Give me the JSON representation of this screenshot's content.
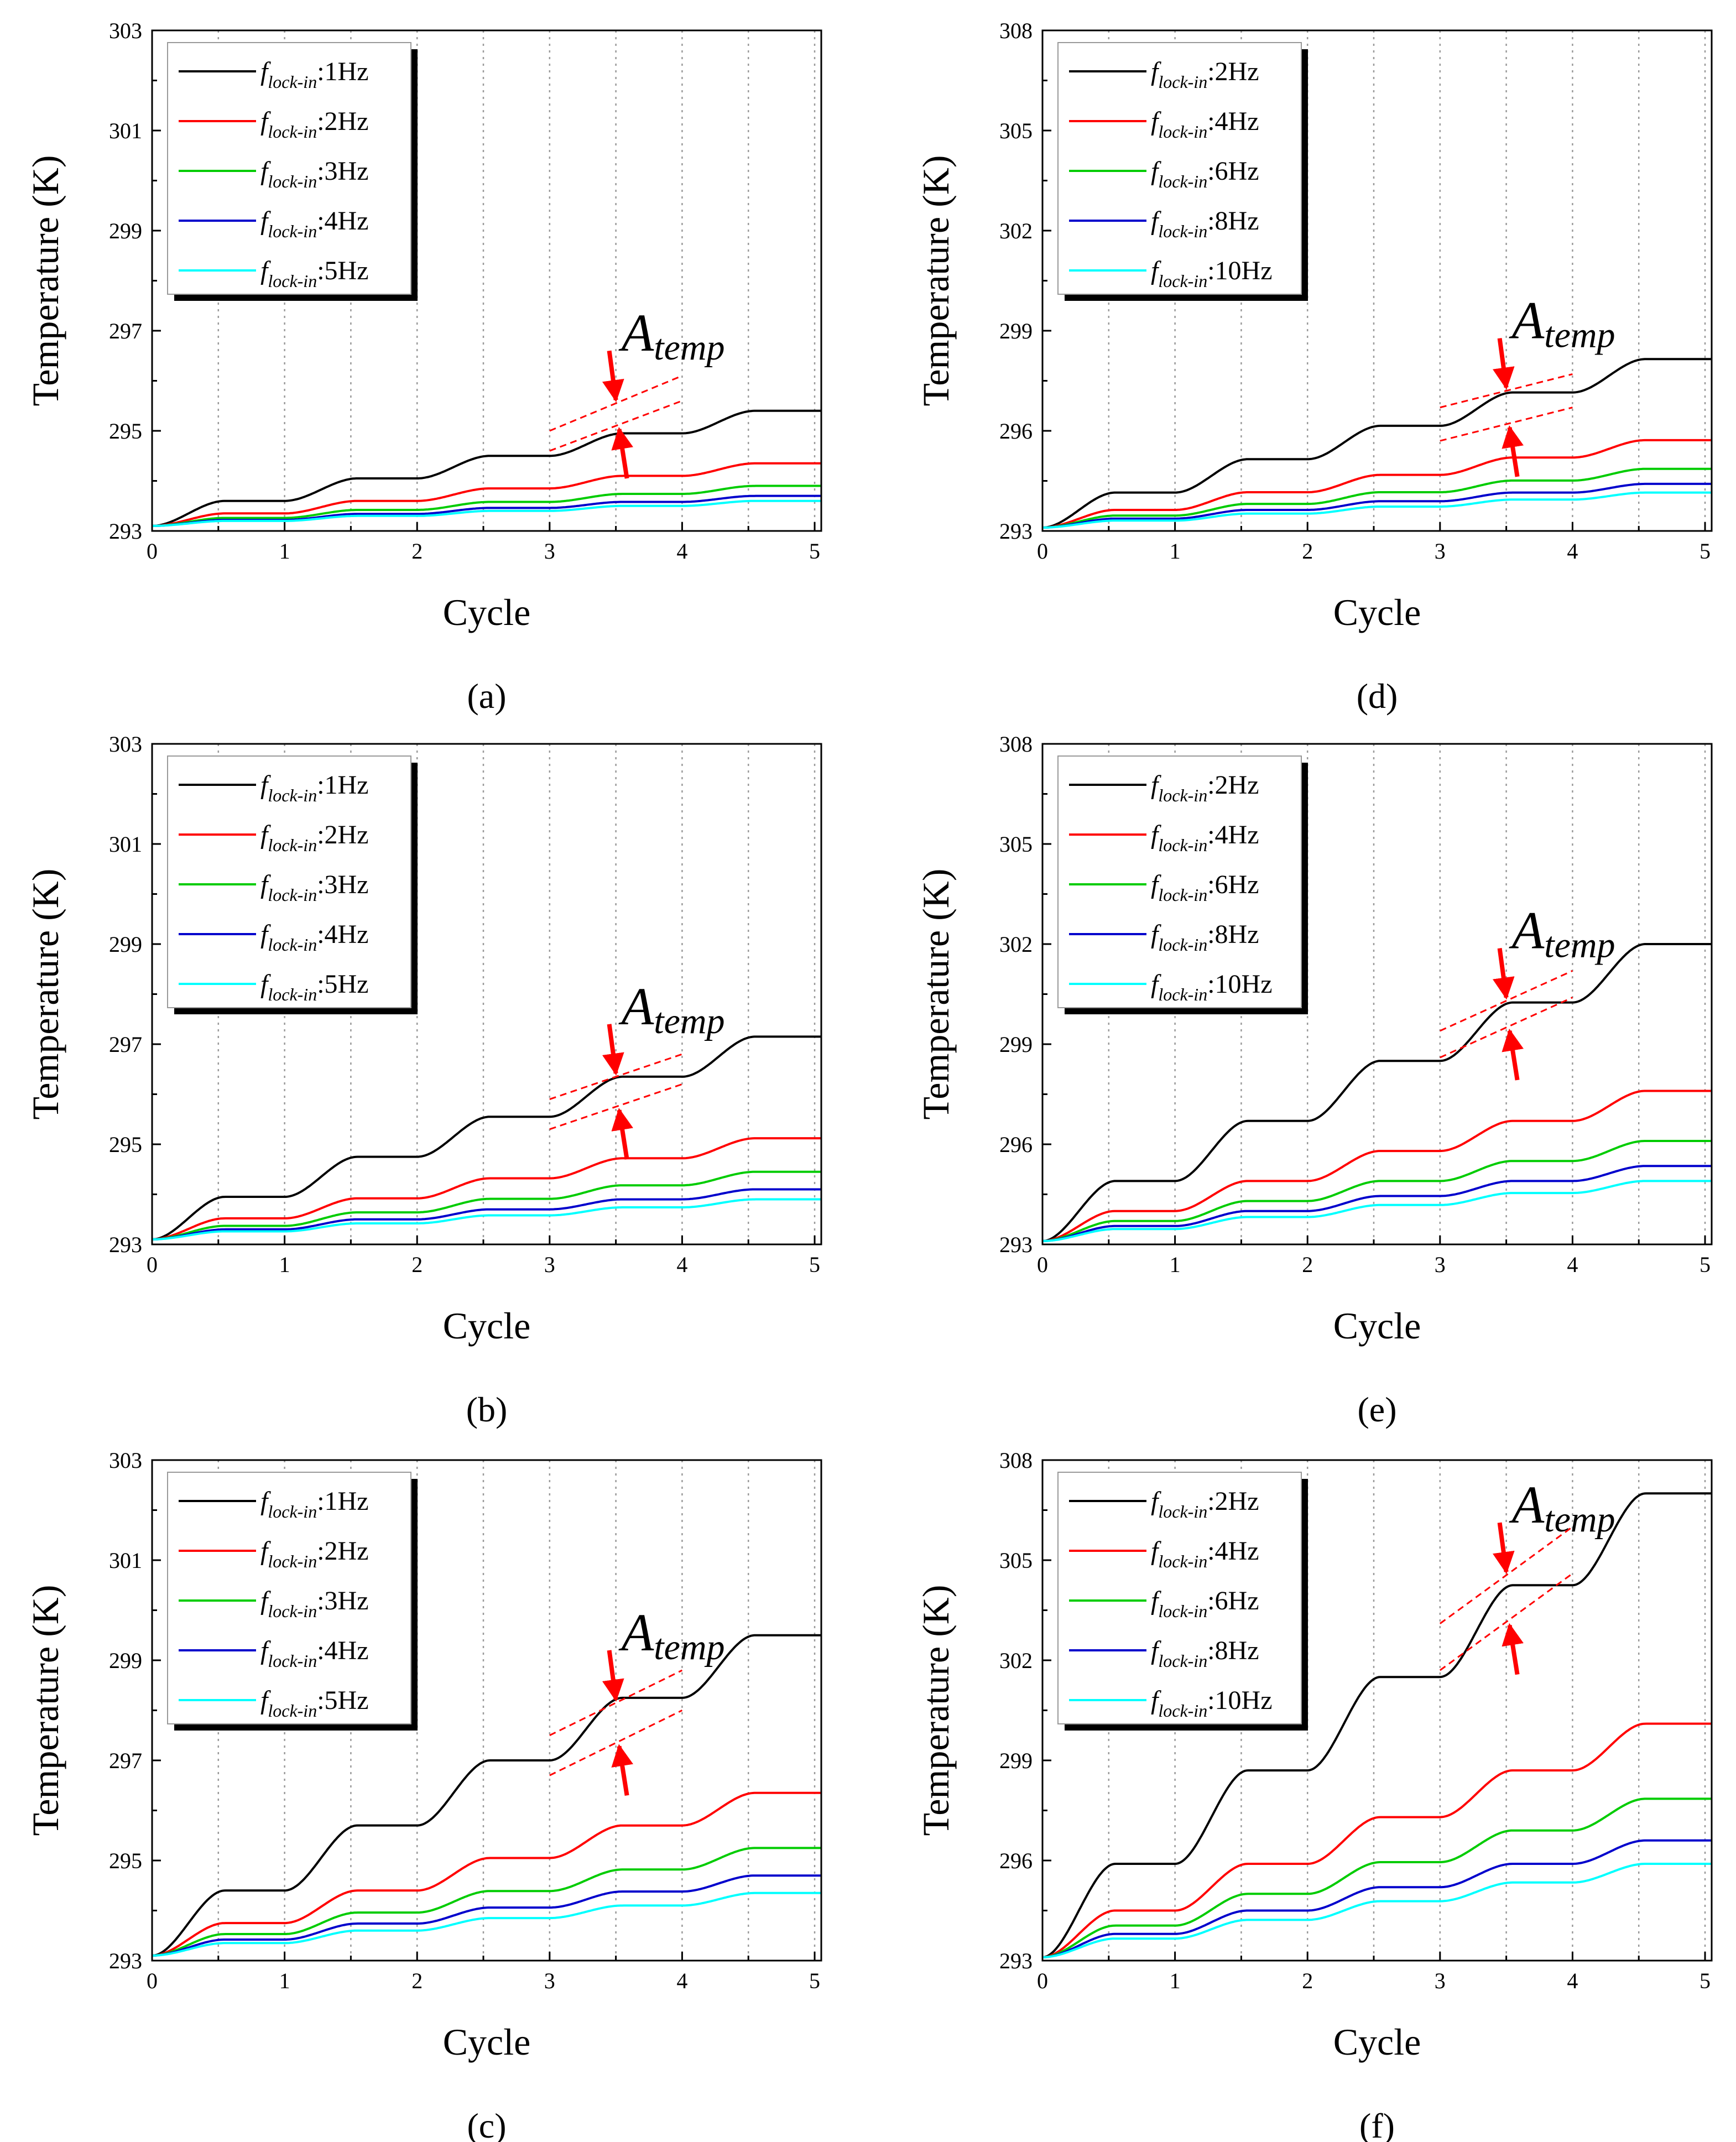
{
  "figure": {
    "axis_x_label": "Cycle",
    "axis_y_label": "Temperature (K)",
    "annotation_base": "A",
    "annotation_sub": "temp",
    "legend_prefix": "f",
    "legend_sub": "lock-in"
  },
  "chart_data": [
    {
      "id": "a",
      "type": "line",
      "caption": "(a)",
      "xlabel": "Cycle",
      "ylabel": "Temperature (K)",
      "xlim": [
        0,
        5.05
      ],
      "ylim": [
        293,
        303
      ],
      "xticks": [
        0,
        1,
        2,
        3,
        4,
        5
      ],
      "yticks": [
        293,
        295,
        297,
        299,
        301,
        303
      ],
      "grid_x": [
        0.5,
        1,
        1.5,
        2,
        2.5,
        3,
        3.5,
        4,
        4.5,
        5
      ],
      "series": [
        {
          "name": ":1Hz",
          "color": "#000000",
          "start": 293.1,
          "increments": [
            0.5,
            0.45,
            0.45,
            0.45,
            0.45
          ]
        },
        {
          "name": ":2Hz",
          "color": "#ff0000",
          "start": 293.1,
          "increments": [
            0.25,
            0.25,
            0.25,
            0.25,
            0.25
          ]
        },
        {
          "name": ":3Hz",
          "color": "#00cc00",
          "start": 293.1,
          "increments": [
            0.16,
            0.16,
            0.16,
            0.16,
            0.16
          ]
        },
        {
          "name": ":4Hz",
          "color": "#0000cc",
          "start": 293.1,
          "increments": [
            0.12,
            0.12,
            0.12,
            0.12,
            0.12
          ]
        },
        {
          "name": ":5Hz",
          "color": "#00ffff",
          "start": 293.1,
          "increments": [
            0.1,
            0.1,
            0.1,
            0.1,
            0.1
          ]
        }
      ],
      "annotation": {
        "label": "A_temp",
        "x_range": [
          3,
          4
        ],
        "upper": [
          295.0,
          296.1
        ],
        "lower": [
          294.6,
          295.6
        ],
        "arrow_x": 3.5
      }
    },
    {
      "id": "b",
      "type": "line",
      "caption": "(b)",
      "xlabel": "Cycle",
      "ylabel": "Temperature (K)",
      "xlim": [
        0,
        5.05
      ],
      "ylim": [
        293,
        303
      ],
      "xticks": [
        0,
        1,
        2,
        3,
        4,
        5
      ],
      "yticks": [
        293,
        295,
        297,
        299,
        301,
        303
      ],
      "grid_x": [
        0.5,
        1,
        1.5,
        2,
        2.5,
        3,
        3.5,
        4,
        4.5,
        5
      ],
      "series": [
        {
          "name": ":1Hz",
          "color": "#000000",
          "start": 293.1,
          "increments": [
            0.85,
            0.8,
            0.8,
            0.8,
            0.8
          ]
        },
        {
          "name": ":2Hz",
          "color": "#ff0000",
          "start": 293.1,
          "increments": [
            0.42,
            0.4,
            0.4,
            0.4,
            0.4
          ]
        },
        {
          "name": ":3Hz",
          "color": "#00cc00",
          "start": 293.1,
          "increments": [
            0.27,
            0.27,
            0.27,
            0.27,
            0.27
          ]
        },
        {
          "name": ":4Hz",
          "color": "#0000cc",
          "start": 293.1,
          "increments": [
            0.2,
            0.2,
            0.2,
            0.2,
            0.2
          ]
        },
        {
          "name": ":5Hz",
          "color": "#00ffff",
          "start": 293.1,
          "increments": [
            0.16,
            0.16,
            0.16,
            0.16,
            0.16
          ]
        }
      ],
      "annotation": {
        "label": "A_temp",
        "x_range": [
          3,
          4
        ],
        "upper": [
          295.9,
          296.8
        ],
        "lower": [
          295.3,
          296.2
        ],
        "arrow_x": 3.5
      }
    },
    {
      "id": "c",
      "type": "line",
      "caption": "(c)",
      "xlabel": "Cycle",
      "ylabel": "Temperature (K)",
      "xlim": [
        0,
        5.05
      ],
      "ylim": [
        293,
        303
      ],
      "xticks": [
        0,
        1,
        2,
        3,
        4,
        5
      ],
      "yticks": [
        293,
        295,
        297,
        299,
        301,
        303
      ],
      "grid_x": [
        0.5,
        1,
        1.5,
        2,
        2.5,
        3,
        3.5,
        4,
        4.5,
        5
      ],
      "series": [
        {
          "name": ":1Hz",
          "color": "#000000",
          "start": 293.1,
          "increments": [
            1.3,
            1.3,
            1.3,
            1.25,
            1.25
          ]
        },
        {
          "name": ":2Hz",
          "color": "#ff0000",
          "start": 293.1,
          "increments": [
            0.65,
            0.65,
            0.65,
            0.65,
            0.65
          ]
        },
        {
          "name": ":3Hz",
          "color": "#00cc00",
          "start": 293.1,
          "increments": [
            0.43,
            0.43,
            0.43,
            0.43,
            0.43
          ]
        },
        {
          "name": ":4Hz",
          "color": "#0000cc",
          "start": 293.1,
          "increments": [
            0.32,
            0.32,
            0.32,
            0.32,
            0.32
          ]
        },
        {
          "name": ":5Hz",
          "color": "#00ffff",
          "start": 293.1,
          "increments": [
            0.25,
            0.25,
            0.25,
            0.25,
            0.25
          ]
        }
      ],
      "annotation": {
        "label": "A_temp",
        "x_range": [
          3,
          4
        ],
        "upper": [
          297.5,
          298.8
        ],
        "lower": [
          296.7,
          298.0
        ],
        "arrow_x": 3.5
      }
    },
    {
      "id": "d",
      "type": "line",
      "caption": "(d)",
      "xlabel": "Cycle",
      "ylabel": "Temperature (K)",
      "xlim": [
        0,
        5.05
      ],
      "ylim": [
        293,
        308
      ],
      "xticks": [
        0,
        1,
        2,
        3,
        4,
        5
      ],
      "yticks": [
        293,
        296,
        299,
        302,
        305,
        308
      ],
      "grid_x": [
        0.5,
        1,
        1.5,
        2,
        2.5,
        3,
        3.5,
        4,
        4.5,
        5
      ],
      "series": [
        {
          "name": ":2Hz",
          "color": "#000000",
          "start": 293.1,
          "increments": [
            1.05,
            1.0,
            1.0,
            1.0,
            1.0
          ]
        },
        {
          "name": ":4Hz",
          "color": "#ff0000",
          "start": 293.1,
          "increments": [
            0.53,
            0.53,
            0.52,
            0.52,
            0.52
          ]
        },
        {
          "name": ":6Hz",
          "color": "#00cc00",
          "start": 293.1,
          "increments": [
            0.36,
            0.35,
            0.35,
            0.35,
            0.35
          ]
        },
        {
          "name": ":8Hz",
          "color": "#0000cc",
          "start": 293.1,
          "increments": [
            0.27,
            0.26,
            0.26,
            0.26,
            0.26
          ]
        },
        {
          "name": ":10Hz",
          "color": "#00ffff",
          "start": 293.1,
          "increments": [
            0.21,
            0.21,
            0.21,
            0.21,
            0.21
          ]
        }
      ],
      "annotation": {
        "label": "A_temp",
        "x_range": [
          3,
          4
        ],
        "upper": [
          296.7,
          297.7
        ],
        "lower": [
          295.7,
          296.7
        ],
        "arrow_x": 3.5
      }
    },
    {
      "id": "e",
      "type": "line",
      "caption": "(e)",
      "xlabel": "Cycle",
      "ylabel": "Temperature (K)",
      "xlim": [
        0,
        5.05
      ],
      "ylim": [
        293,
        308
      ],
      "xticks": [
        0,
        1,
        2,
        3,
        4,
        5
      ],
      "yticks": [
        293,
        296,
        299,
        302,
        305,
        308
      ],
      "grid_x": [
        0.5,
        1,
        1.5,
        2,
        2.5,
        3,
        3.5,
        4,
        4.5,
        5
      ],
      "series": [
        {
          "name": ":2Hz",
          "color": "#000000",
          "start": 293.1,
          "increments": [
            1.8,
            1.8,
            1.8,
            1.75,
            1.75
          ]
        },
        {
          "name": ":4Hz",
          "color": "#ff0000",
          "start": 293.1,
          "increments": [
            0.9,
            0.9,
            0.9,
            0.9,
            0.9
          ]
        },
        {
          "name": ":6Hz",
          "color": "#00cc00",
          "start": 293.1,
          "increments": [
            0.6,
            0.6,
            0.6,
            0.6,
            0.6
          ]
        },
        {
          "name": ":8Hz",
          "color": "#0000cc",
          "start": 293.1,
          "increments": [
            0.45,
            0.45,
            0.45,
            0.45,
            0.45
          ]
        },
        {
          "name": ":10Hz",
          "color": "#00ffff",
          "start": 293.1,
          "increments": [
            0.36,
            0.36,
            0.36,
            0.36,
            0.36
          ]
        }
      ],
      "annotation": {
        "label": "A_temp",
        "x_range": [
          3,
          4
        ],
        "upper": [
          299.4,
          301.2
        ],
        "lower": [
          298.6,
          300.4
        ],
        "arrow_x": 3.5
      }
    },
    {
      "id": "f",
      "type": "line",
      "caption": "(f)",
      "xlabel": "Cycle",
      "ylabel": "Temperature (K)",
      "xlim": [
        0,
        5.05
      ],
      "ylim": [
        293,
        308
      ],
      "xticks": [
        0,
        1,
        2,
        3,
        4,
        5
      ],
      "yticks": [
        293,
        296,
        299,
        302,
        305,
        308
      ],
      "grid_x": [
        0.5,
        1,
        1.5,
        2,
        2.5,
        3,
        3.5,
        4,
        4.5,
        5
      ],
      "series": [
        {
          "name": ":2Hz",
          "color": "#000000",
          "start": 293.1,
          "increments": [
            2.8,
            2.8,
            2.8,
            2.75,
            2.75
          ]
        },
        {
          "name": ":4Hz",
          "color": "#ff0000",
          "start": 293.1,
          "increments": [
            1.4,
            1.4,
            1.4,
            1.4,
            1.4
          ]
        },
        {
          "name": ":6Hz",
          "color": "#00cc00",
          "start": 293.1,
          "increments": [
            0.95,
            0.95,
            0.95,
            0.95,
            0.95
          ]
        },
        {
          "name": ":8Hz",
          "color": "#0000cc",
          "start": 293.1,
          "increments": [
            0.7,
            0.7,
            0.7,
            0.7,
            0.7
          ]
        },
        {
          "name": ":10Hz",
          "color": "#00ffff",
          "start": 293.1,
          "increments": [
            0.56,
            0.56,
            0.56,
            0.56,
            0.56
          ]
        }
      ],
      "annotation": {
        "label": "A_temp",
        "x_range": [
          3,
          4
        ],
        "upper": [
          303.1,
          306.0
        ],
        "lower": [
          301.7,
          304.6
        ],
        "arrow_x": 3.5
      }
    }
  ]
}
